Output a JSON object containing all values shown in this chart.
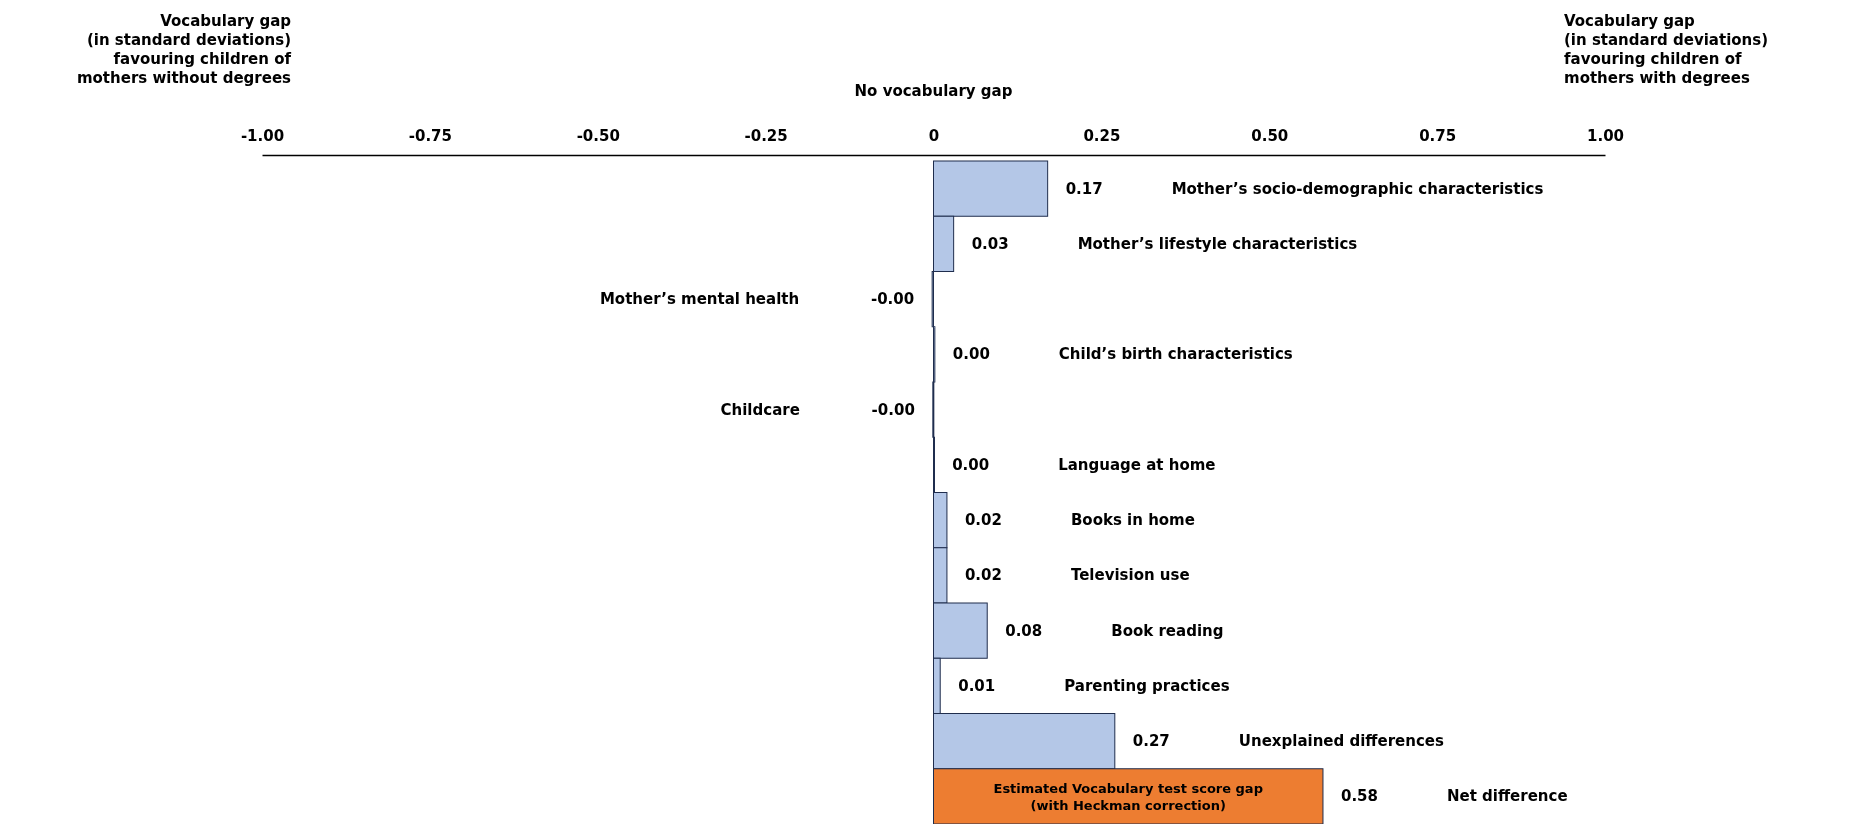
{
  "chart_data": {
    "type": "bar",
    "orientation": "horizontal",
    "categories": [
      "Mother’s socio-demographic characteristics",
      "Mother’s lifestyle characteristics",
      "Mother’s mental health",
      "Child’s birth characteristics",
      "Childcare",
      "Language at home",
      "Books in home",
      "Television use",
      "Book reading",
      "Parenting practices",
      "Unexplained differences",
      "Net difference"
    ],
    "values": [
      0.17,
      0.03,
      -0.002,
      0.002,
      -0.001,
      0.001,
      0.02,
      0.02,
      0.08,
      0.01,
      0.27,
      0.58
    ],
    "value_labels": [
      "0.17",
      "0.03",
      "-0.00",
      "0.00",
      "-0.00",
      "0.00",
      "0.02",
      "0.02",
      "0.08",
      "0.01",
      "0.27",
      "0.58"
    ],
    "colors": [
      "#b4c7e7",
      "#b4c7e7",
      "#b4c7e7",
      "#b4c7e7",
      "#b4c7e7",
      "#b4c7e7",
      "#b4c7e7",
      "#b4c7e7",
      "#b4c7e7",
      "#b4c7e7",
      "#b4c7e7",
      "#ed7d31"
    ],
    "xlim": [
      -1,
      1
    ],
    "xticks": [
      {
        "value": -1,
        "label": "-1.00"
      },
      {
        "value": -0.75,
        "label": "-0.75"
      },
      {
        "value": -0.5,
        "label": "-0.50"
      },
      {
        "value": -0.25,
        "label": "-0.25"
      },
      0,
      {
        "value": 0.25,
        "label": "0.25"
      },
      {
        "value": 0.5,
        "label": "0.50"
      },
      {
        "value": 0.75,
        "label": "0.75"
      },
      {
        "value": 1,
        "label": "1.00"
      }
    ],
    "annotations": [
      "Vocabulary gap\n(in standard deviations)\nfavouring children of\nmothers without degrees",
      "No vocabulary gap",
      "Vocabulary gap\n(in standard deviations)\nfavouring children of\nmothers with degrees",
      {
        "text": "Estimated Vocabulary test score gap\n(with Heckman correction)",
        "x": 0.29,
        "y": "Net difference"
      }
    ]
  }
}
